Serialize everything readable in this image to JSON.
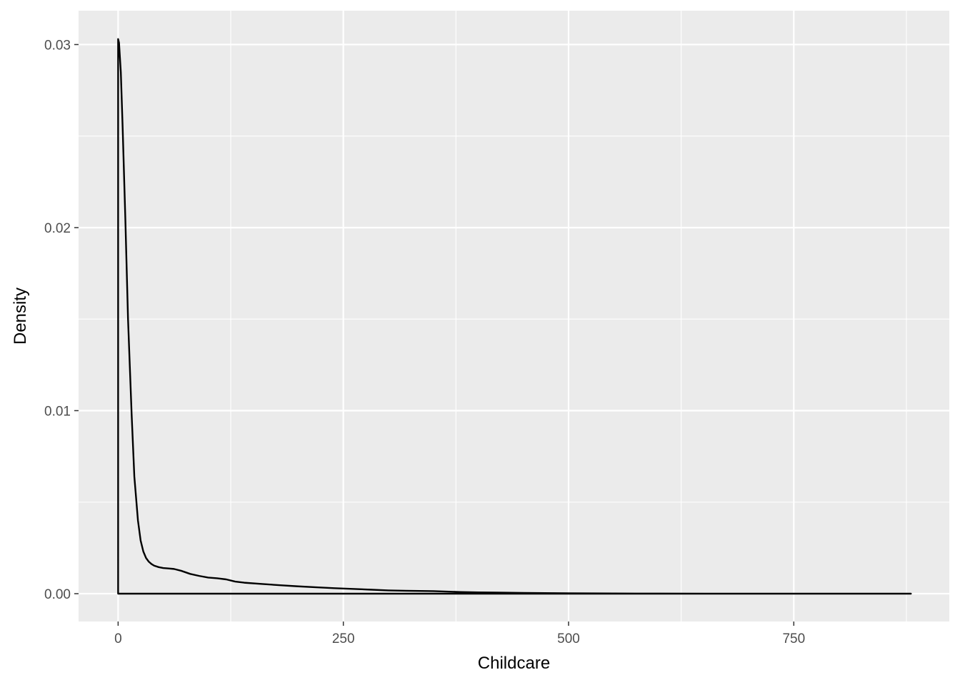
{
  "chart_data": {
    "type": "line",
    "title": "",
    "xlabel": "Childcare",
    "ylabel": "Density",
    "xlim": [
      -43.9,
      922.6
    ],
    "ylim": [
      -0.00152,
      0.03185
    ],
    "x_ticks": [
      0,
      250,
      500,
      750
    ],
    "x_tick_labels": [
      "0",
      "250",
      "500",
      "750"
    ],
    "y_ticks": [
      0.0,
      0.01,
      0.02,
      0.03
    ],
    "y_tick_labels": [
      "0.00",
      "0.01",
      "0.02",
      "0.03"
    ],
    "grid": true,
    "panel_background": "#ebebeb",
    "grid_color": "#ffffff",
    "line_color": "#000000",
    "series": [
      {
        "x": [
          0,
          1,
          3,
          5,
          8,
          11,
          15,
          18,
          22,
          25,
          28,
          31,
          34,
          37,
          40,
          45,
          50,
          55,
          62,
          70,
          80,
          90,
          100,
          110,
          120,
          130,
          140,
          160,
          180,
          200,
          220,
          240,
          260,
          280,
          300,
          320,
          350,
          380,
          400,
          420,
          450,
          500,
          550,
          600,
          650,
          700,
          750,
          800,
          850,
          880
        ],
        "y": [
          0.0303,
          0.0301,
          0.0285,
          0.0255,
          0.0205,
          0.015,
          0.0098,
          0.0064,
          0.004,
          0.0029,
          0.0023,
          0.00195,
          0.00175,
          0.00162,
          0.00153,
          0.00145,
          0.0014,
          0.00138,
          0.00135,
          0.00125,
          0.00108,
          0.00097,
          0.00088,
          0.00084,
          0.00078,
          0.00066,
          0.0006,
          0.00053,
          0.00046,
          0.0004,
          0.00035,
          0.0003,
          0.00026,
          0.00022,
          0.00018,
          0.00016,
          0.00014,
          9e-05,
          7e-05,
          6e-05,
          4e-05,
          2e-05,
          1e-05,
          5e-06,
          3e-06,
          2e-06,
          1e-06,
          1e-06,
          0.0,
          0.0
        ]
      }
    ]
  }
}
